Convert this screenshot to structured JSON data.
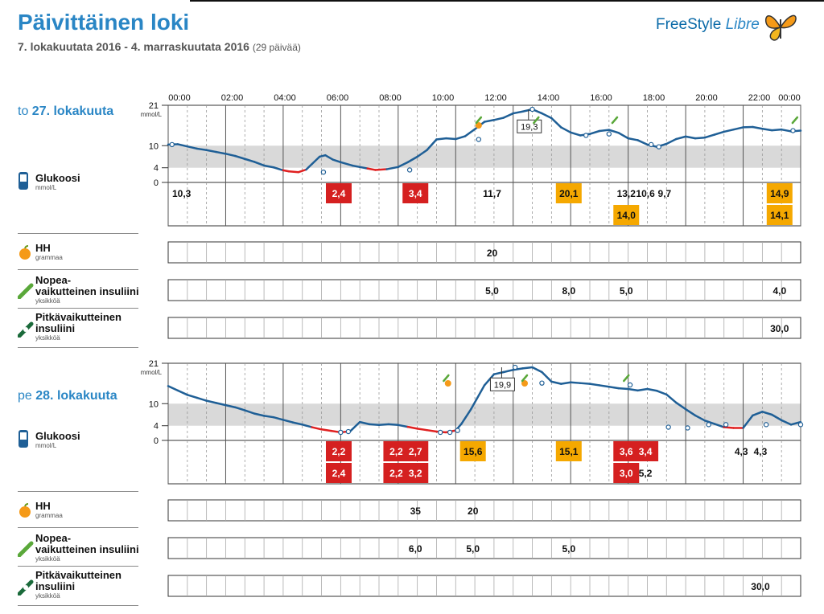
{
  "header": {
    "title": "Päivittäinen loki",
    "date_range": "7. lokakuutata 2016 - 4. marraskuutata 2016",
    "days": "(29 päivää)",
    "brand_1": "FreeStyle",
    "brand_2": "Libre"
  },
  "colors": {
    "accent": "#2a86c5",
    "curve": "#1f5f96",
    "low": "#e02020",
    "high_box": "#f5a800",
    "low_box": "#d52020",
    "target_band": "#d9d9d9"
  },
  "axis": {
    "times": [
      "00:00",
      "02:00",
      "04:00",
      "06:00",
      "08:00",
      "10:00",
      "12:00",
      "14:00",
      "16:00",
      "18:00",
      "20:00",
      "22:00",
      "00:00"
    ],
    "y_ticks": [
      "21",
      "10",
      "4",
      "0"
    ],
    "y_unit": "mmol/L"
  },
  "labels": {
    "glucose": "Glukoosi",
    "glucose_unit": "mmol/L",
    "carbs": "HH",
    "carbs_unit": "grammaa",
    "rapid_1": "Nopea-",
    "rapid_2": "vaikutteinen insuliini",
    "rapid_unit": "yksikköä",
    "long_1": "Pitkävaikutteinen",
    "long_2": "insuliini",
    "long_unit": "yksikköä"
  },
  "chart_data": [
    {
      "type": "line",
      "day_prefix": "to",
      "day_label": "27. lokakuuta",
      "ylim": [
        0,
        21
      ],
      "target_range": [
        4,
        10
      ],
      "curve_points": [
        [
          0,
          10.3
        ],
        [
          0.5,
          10.4
        ],
        [
          1,
          9.8
        ],
        [
          1.5,
          9.2
        ],
        [
          2,
          8.8
        ],
        [
          2.5,
          8.3
        ],
        [
          3,
          7.8
        ],
        [
          3.5,
          7.2
        ],
        [
          4,
          6.4
        ],
        [
          4.5,
          5.6
        ],
        [
          5,
          4.6
        ],
        [
          5.5,
          4.1
        ],
        [
          6,
          3.3
        ],
        [
          6.3,
          3.0
        ],
        [
          6.8,
          2.8
        ],
        [
          7.2,
          3.5
        ],
        [
          7.5,
          5.0
        ],
        [
          7.9,
          7.0
        ],
        [
          8.2,
          7.4
        ],
        [
          8.6,
          6.2
        ],
        [
          9,
          5.5
        ],
        [
          9.6,
          4.6
        ],
        [
          10,
          4.2
        ],
        [
          10.4,
          3.8
        ],
        [
          10.8,
          3.4
        ],
        [
          11.4,
          3.6
        ],
        [
          12,
          4.2
        ],
        [
          12.5,
          5.5
        ],
        [
          13,
          7.0
        ],
        [
          13.5,
          8.8
        ],
        [
          14,
          11.7
        ],
        [
          14.5,
          12.0
        ],
        [
          15,
          11.8
        ],
        [
          15.5,
          12.6
        ],
        [
          16,
          14.5
        ],
        [
          16.5,
          16.5
        ],
        [
          17,
          17.0
        ],
        [
          17.5,
          17.6
        ],
        [
          18,
          18.8
        ],
        [
          18.5,
          19.3
        ],
        [
          19,
          19.9
        ],
        [
          19.5,
          18.8
        ],
        [
          20,
          17.5
        ],
        [
          20.5,
          15.0
        ],
        [
          21,
          13.6
        ],
        [
          21.5,
          12.8
        ],
        [
          22,
          13.2
        ],
        [
          22.5,
          14.0
        ],
        [
          23,
          14.3
        ],
        [
          23.5,
          13.5
        ],
        [
          24,
          12.0
        ],
        [
          24.5,
          11.5
        ],
        [
          25,
          10.3
        ],
        [
          25.5,
          9.7
        ],
        [
          26,
          10.5
        ],
        [
          26.5,
          11.8
        ],
        [
          27,
          12.5
        ],
        [
          27.5,
          12.0
        ],
        [
          28,
          12.2
        ],
        [
          28.5,
          13.0
        ],
        [
          29,
          13.8
        ],
        [
          29.5,
          14.4
        ],
        [
          30,
          15.0
        ],
        [
          30.5,
          15.1
        ],
        [
          31,
          14.6
        ],
        [
          31.5,
          14.2
        ],
        [
          32,
          14.4
        ],
        [
          32.5,
          13.9
        ],
        [
          33,
          14.1
        ]
      ],
      "scan_points": [
        [
          0.2,
          10.3
        ],
        [
          8.1,
          2.8
        ],
        [
          12.6,
          3.4
        ],
        [
          16.2,
          11.7
        ],
        [
          19,
          19.9
        ],
        [
          21.8,
          12.8
        ],
        [
          23,
          13.2
        ],
        [
          25.2,
          10.3
        ],
        [
          25.6,
          9.7
        ],
        [
          32.6,
          14.1
        ]
      ],
      "annotations": [
        {
          "x": 18.8,
          "value": "19,3"
        }
      ],
      "carb_icons": [
        16.2
      ],
      "rapid_icons": [
        16.2,
        19.2,
        23.3,
        32.7
      ],
      "readings_row1": [
        {
          "x": 0.7,
          "value": "10,3",
          "style": "plain"
        },
        {
          "x": 8.9,
          "value": "2,4",
          "style": "low"
        },
        {
          "x": 12.9,
          "value": "3,4",
          "style": "low"
        },
        {
          "x": 16.9,
          "value": "11,7",
          "style": "plain"
        },
        {
          "x": 20.9,
          "value": "20,1",
          "style": "high"
        },
        {
          "x": 23.9,
          "value": "13,2",
          "style": "plain"
        },
        {
          "x": 24.9,
          "value": "10,6",
          "style": "plain"
        },
        {
          "x": 25.9,
          "value": "9,7",
          "style": "plain"
        },
        {
          "x": 31.9,
          "value": "14,9",
          "style": "high"
        }
      ],
      "readings_row2": [
        {
          "x": 23.9,
          "value": "14,0",
          "style": "high"
        },
        {
          "x": 31.9,
          "value": "14,1",
          "style": "high"
        }
      ],
      "carbs": [
        {
          "x": 16.9,
          "value": "20"
        }
      ],
      "rapid": [
        {
          "x": 16.9,
          "value": "5,0"
        },
        {
          "x": 20.9,
          "value": "8,0"
        },
        {
          "x": 23.9,
          "value": "5,0"
        },
        {
          "x": 31.9,
          "value": "4,0"
        }
      ],
      "long": [
        {
          "x": 31.9,
          "value": "30,0"
        }
      ]
    },
    {
      "type": "line",
      "day_prefix": "pe",
      "day_label": "28. lokakuuta",
      "ylim": [
        0,
        21
      ],
      "target_range": [
        4,
        10
      ],
      "curve_points": [
        [
          0,
          14.8
        ],
        [
          0.5,
          13.6
        ],
        [
          1,
          12.4
        ],
        [
          1.5,
          11.6
        ],
        [
          2,
          10.8
        ],
        [
          2.5,
          10.2
        ],
        [
          3,
          9.6
        ],
        [
          3.5,
          9.0
        ],
        [
          4,
          8.2
        ],
        [
          4.5,
          7.3
        ],
        [
          5,
          6.7
        ],
        [
          5.5,
          6.3
        ],
        [
          6,
          5.6
        ],
        [
          6.5,
          4.9
        ],
        [
          7,
          4.3
        ],
        [
          7.5,
          3.6
        ],
        [
          8,
          3.0
        ],
        [
          8.5,
          2.6
        ],
        [
          9,
          2.2
        ],
        [
          9.5,
          2.5
        ],
        [
          10,
          5.0
        ],
        [
          10.5,
          4.4
        ],
        [
          11,
          4.2
        ],
        [
          11.5,
          4.4
        ],
        [
          12,
          4.2
        ],
        [
          12.5,
          3.7
        ],
        [
          13,
          3.2
        ],
        [
          13.5,
          2.8
        ],
        [
          14,
          2.4
        ],
        [
          14.5,
          2.2
        ],
        [
          15,
          2.7
        ],
        [
          15.3,
          4.5
        ],
        [
          15.8,
          8.5
        ],
        [
          16.5,
          15.0
        ],
        [
          17,
          18.0
        ],
        [
          17.5,
          18.6
        ],
        [
          18,
          19.2
        ],
        [
          18.5,
          19.6
        ],
        [
          19,
          19.9
        ],
        [
          19.5,
          18.6
        ],
        [
          20,
          16.0
        ],
        [
          20.5,
          15.4
        ],
        [
          21,
          15.8
        ],
        [
          21.5,
          15.6
        ],
        [
          22,
          15.4
        ],
        [
          22.5,
          15.0
        ],
        [
          23,
          14.6
        ],
        [
          23.5,
          14.2
        ],
        [
          24,
          14.0
        ],
        [
          24.5,
          13.6
        ],
        [
          25,
          14.0
        ],
        [
          25.5,
          13.5
        ],
        [
          26,
          12.5
        ],
        [
          26.5,
          10.3
        ],
        [
          27,
          8.5
        ],
        [
          27.5,
          6.8
        ],
        [
          28,
          5.4
        ],
        [
          28.5,
          4.5
        ],
        [
          29,
          3.6
        ],
        [
          29.5,
          3.4
        ],
        [
          30,
          3.4
        ],
        [
          30.5,
          6.8
        ],
        [
          31,
          7.8
        ],
        [
          31.5,
          7.0
        ],
        [
          32,
          5.5
        ],
        [
          32.5,
          4.3
        ],
        [
          33,
          5.0
        ]
      ],
      "scan_points": [
        [
          9,
          2.2
        ],
        [
          9.4,
          2.4
        ],
        [
          14.2,
          2.2
        ],
        [
          14.7,
          2.2
        ],
        [
          15.1,
          2.7
        ],
        [
          18.1,
          19.9
        ],
        [
          19.5,
          15.6
        ],
        [
          24.1,
          15.1
        ],
        [
          26.1,
          3.6
        ],
        [
          27.1,
          3.4
        ],
        [
          28.2,
          4.3
        ],
        [
          29.1,
          4.3
        ],
        [
          31.2,
          4.3
        ],
        [
          33,
          4.3
        ]
      ],
      "annotations": [
        {
          "x": 17.4,
          "value": "19,9"
        }
      ],
      "carb_icons": [
        14.6,
        18.6
      ],
      "rapid_icons": [
        14.5,
        18.6,
        23.9
      ],
      "readings_row1": [
        {
          "x": 8.9,
          "value": "2,2",
          "style": "low"
        },
        {
          "x": 11.9,
          "value": "2,2",
          "style": "low"
        },
        {
          "x": 12.9,
          "value": "2,7",
          "style": "low"
        },
        {
          "x": 15.9,
          "value": "15,6",
          "style": "high"
        },
        {
          "x": 20.9,
          "value": "15,1",
          "style": "high"
        },
        {
          "x": 23.9,
          "value": "3,6",
          "style": "low"
        },
        {
          "x": 24.9,
          "value": "3,4",
          "style": "low"
        },
        {
          "x": 29.9,
          "value": "4,3",
          "style": "plain"
        },
        {
          "x": 30.9,
          "value": "4,3",
          "style": "plain"
        }
      ],
      "readings_row2": [
        {
          "x": 8.9,
          "value": "2,4",
          "style": "low"
        },
        {
          "x": 11.9,
          "value": "2,2",
          "style": "low"
        },
        {
          "x": 12.9,
          "value": "3,2",
          "style": "low"
        },
        {
          "x": 23.9,
          "value": "3,0",
          "style": "low"
        },
        {
          "x": 24.9,
          "value": "5,2",
          "style": "plain"
        }
      ],
      "carbs": [
        {
          "x": 12.9,
          "value": "35"
        },
        {
          "x": 15.9,
          "value": "20"
        }
      ],
      "rapid": [
        {
          "x": 12.9,
          "value": "6,0"
        },
        {
          "x": 15.9,
          "value": "5,0"
        },
        {
          "x": 20.9,
          "value": "5,0"
        }
      ],
      "long": [
        {
          "x": 30.9,
          "value": "30,0"
        }
      ]
    }
  ]
}
